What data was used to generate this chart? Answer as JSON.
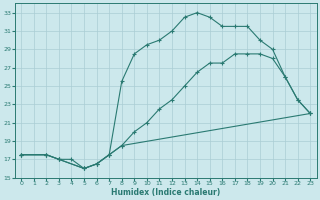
{
  "xlabel": "Humidex (Indice chaleur)",
  "ylabel": "",
  "bg_color": "#cce8ec",
  "grid_color": "#aacdd4",
  "line_color": "#2a7a72",
  "xlim": [
    -0.5,
    23.5
  ],
  "ylim": [
    15,
    34
  ],
  "xticks": [
    0,
    1,
    2,
    3,
    4,
    5,
    6,
    7,
    8,
    9,
    10,
    11,
    12,
    13,
    14,
    15,
    16,
    17,
    18,
    19,
    20,
    21,
    22,
    23
  ],
  "yticks": [
    15,
    17,
    19,
    21,
    23,
    25,
    27,
    29,
    31,
    33
  ],
  "line1_x": [
    0,
    2,
    3,
    4,
    5,
    6,
    7,
    8,
    23
  ],
  "line1_y": [
    17.5,
    17.5,
    17.0,
    17.0,
    16.0,
    16.5,
    17.5,
    18.5,
    22.0
  ],
  "line2_x": [
    0,
    2,
    3,
    5,
    6,
    7,
    8,
    9,
    10,
    11,
    12,
    13,
    14,
    15,
    16,
    17,
    18,
    19,
    20,
    21,
    22,
    23
  ],
  "line2_y": [
    17.5,
    17.5,
    17.0,
    16.0,
    16.5,
    17.5,
    25.5,
    28.5,
    29.5,
    30.0,
    31.0,
    32.5,
    33.0,
    32.5,
    31.5,
    31.5,
    31.5,
    30.0,
    29.0,
    26.0,
    23.5,
    22.0
  ],
  "line3_x": [
    0,
    2,
    3,
    5,
    6,
    7,
    8,
    9,
    10,
    11,
    12,
    13,
    14,
    15,
    16,
    17,
    18,
    19,
    20,
    21,
    22,
    23
  ],
  "line3_y": [
    17.5,
    17.5,
    17.0,
    16.0,
    16.5,
    17.5,
    18.5,
    20.0,
    21.0,
    22.5,
    23.5,
    25.0,
    26.5,
    27.5,
    27.5,
    28.5,
    28.5,
    28.5,
    28.0,
    26.0,
    23.5,
    22.0
  ]
}
